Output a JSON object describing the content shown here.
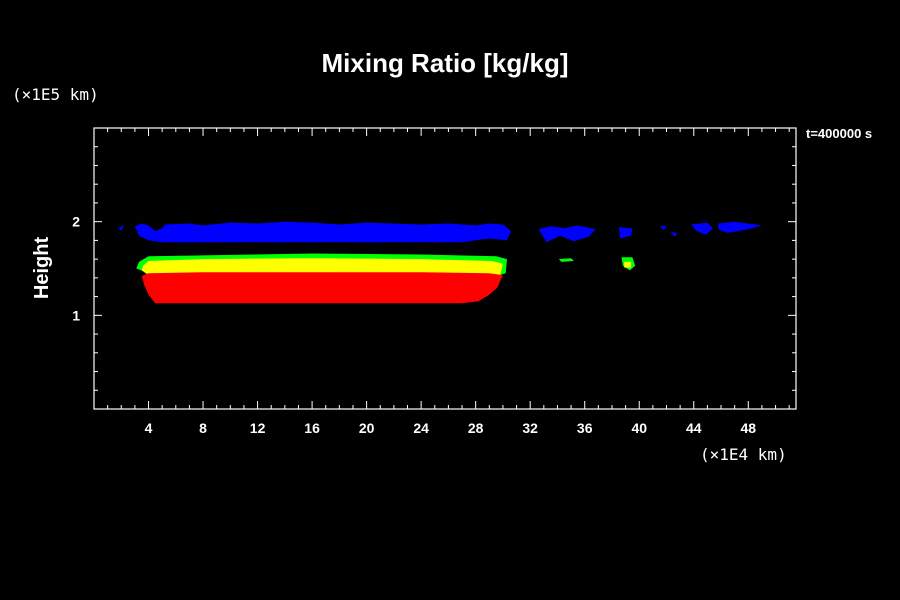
{
  "chart_data": {
    "type": "contour",
    "title": "Mixing Ratio [kg/kg]",
    "xlabel": "",
    "ylabel": "Height",
    "x_unit": "(×1E4 km)",
    "y_unit": "(×1E5 km)",
    "time_label": "t=400000 s",
    "xlim": [
      0,
      51.5
    ],
    "ylim": [
      0,
      3
    ],
    "x_ticks": [
      4,
      8,
      12,
      16,
      20,
      24,
      28,
      32,
      36,
      40,
      44,
      48
    ],
    "y_ticks": [
      1,
      2
    ],
    "colors": {
      "blue": "#0000ff",
      "green": "#00ff00",
      "yellow": "#ffff00",
      "red": "#ff0000"
    },
    "regions": [
      {
        "color": "blue",
        "x": [
          1.8,
          2.2,
          2.0
        ],
        "y": [
          1.93,
          1.97,
          1.9
        ]
      },
      {
        "color": "blue",
        "x": [
          3.0,
          3.5,
          4.0,
          4.5,
          5.0,
          5.2,
          7.0,
          8.0,
          10.0,
          12.0,
          14.0,
          16.0,
          18.0,
          20.0,
          22.0,
          24.0,
          26.0,
          28.0,
          29.0,
          30.0,
          30.6,
          30.3,
          29.0,
          27.0,
          24.0,
          20.0,
          16.0,
          12.0,
          8.0,
          5.0,
          4.0,
          3.3
        ],
        "y": [
          1.95,
          1.98,
          1.96,
          1.9,
          1.93,
          1.97,
          1.98,
          1.96,
          1.99,
          1.98,
          2.0,
          1.99,
          1.97,
          1.99,
          1.98,
          1.97,
          1.98,
          1.96,
          1.98,
          1.97,
          1.9,
          1.8,
          1.82,
          1.78,
          1.78,
          1.78,
          1.78,
          1.78,
          1.78,
          1.78,
          1.8,
          1.85
        ]
      },
      {
        "color": "blue",
        "x": [
          32.6,
          33.5,
          34.5,
          35.5,
          36.8,
          36.3,
          35.2,
          34.2,
          33.2
        ],
        "y": [
          1.92,
          1.95,
          1.93,
          1.96,
          1.92,
          1.84,
          1.79,
          1.85,
          1.78
        ]
      },
      {
        "color": "blue",
        "x": [
          38.5,
          39.5,
          39.4,
          38.6
        ],
        "y": [
          1.94,
          1.93,
          1.85,
          1.82
        ]
      },
      {
        "color": "blue",
        "x": [
          41.5,
          42.0,
          41.8
        ],
        "y": [
          1.95,
          1.96,
          1.91
        ]
      },
      {
        "color": "blue",
        "x": [
          42.3,
          42.8,
          42.6
        ],
        "y": [
          1.89,
          1.88,
          1.84
        ]
      },
      {
        "color": "blue",
        "x": [
          43.8,
          45.0,
          45.4,
          44.9,
          44.2
        ],
        "y": [
          1.97,
          1.99,
          1.93,
          1.86,
          1.9
        ]
      },
      {
        "color": "blue",
        "x": [
          45.8,
          47.0,
          49.0,
          48.0,
          46.5,
          45.8
        ],
        "y": [
          1.98,
          2.0,
          1.96,
          1.92,
          1.88,
          1.92
        ]
      },
      {
        "color": "green",
        "x": [
          3.3,
          4.0,
          8.0,
          16.0,
          24.0,
          29.5,
          30.3,
          30.2,
          29.5,
          24.0,
          16.0,
          8.0,
          4.0,
          3.1
        ],
        "y": [
          1.57,
          1.63,
          1.64,
          1.66,
          1.65,
          1.63,
          1.6,
          1.45,
          1.42,
          1.45,
          1.45,
          1.45,
          1.45,
          1.5
        ]
      },
      {
        "color": "green",
        "x": [
          34.1,
          35.0,
          35.2,
          34.3
        ],
        "y": [
          1.6,
          1.61,
          1.58,
          1.57
        ]
      },
      {
        "color": "green",
        "x": [
          38.7,
          39.5,
          39.7,
          39.3,
          38.8
        ],
        "y": [
          1.62,
          1.62,
          1.53,
          1.48,
          1.53
        ]
      },
      {
        "color": "yellow",
        "x": [
          3.6,
          4.0,
          8.0,
          16.0,
          24.0,
          29.2,
          30.0,
          29.8,
          29.0,
          24.0,
          16.0,
          8.0,
          4.0,
          3.5
        ],
        "y": [
          1.53,
          1.58,
          1.6,
          1.61,
          1.6,
          1.58,
          1.55,
          1.43,
          1.42,
          1.43,
          1.43,
          1.43,
          1.43,
          1.48
        ]
      },
      {
        "color": "yellow",
        "x": [
          38.9,
          39.4,
          39.4,
          38.9
        ],
        "y": [
          1.57,
          1.57,
          1.51,
          1.51
        ]
      },
      {
        "color": "red",
        "x": [
          3.5,
          4.0,
          8.0,
          16.0,
          24.0,
          29.0,
          30.0,
          29.6,
          29.0,
          28.2,
          27.0,
          24.0,
          16.0,
          8.0,
          4.5,
          4.0,
          3.7
        ],
        "y": [
          1.42,
          1.45,
          1.46,
          1.46,
          1.46,
          1.45,
          1.43,
          1.3,
          1.22,
          1.15,
          1.13,
          1.13,
          1.13,
          1.13,
          1.13,
          1.22,
          1.32
        ]
      }
    ]
  }
}
